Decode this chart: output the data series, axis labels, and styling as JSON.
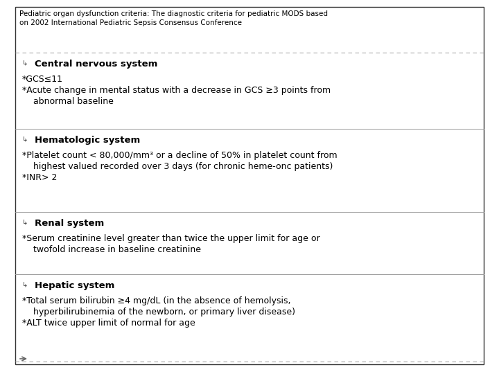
{
  "title": "Pediatric organ dysfunction criteria: The diagnostic criteria for pediatric MODS based\non 2002 International Pediatric Sepsis Consensus Conference",
  "title_fontsize": 7.5,
  "title_color": "#000000",
  "bg_color": "#ffffff",
  "border_color": "#333333",
  "dashed_color": "#aaaaaa",
  "solid_color": "#999999",
  "sections": [
    {
      "header": "Central nervous system",
      "lines": [
        "*GCS≤11",
        "*Acute change in mental status with a decrease in GCS ≥3 points from",
        "    abnormal baseline"
      ]
    },
    {
      "header": "Hematologic system",
      "lines": [
        "*Platelet count < 80,000/mm³ or a decline of 50% in platelet count from",
        "    highest valued recorded over 3 days (for chronic heme-onc patients)",
        "*INR> 2"
      ]
    },
    {
      "header": "Renal system",
      "lines": [
        "*Serum creatinine level greater than twice the upper limit for age or",
        "    twofold increase in baseline creatinine"
      ]
    },
    {
      "header": "Hepatic system",
      "lines": [
        "*Total serum bilirubin ≥4 mg/dL (in the absence of hemolysis,",
        "    hyperbilirubinemia of the newborn, or primary liver disease)",
        "*ALT twice upper limit of normal for age"
      ]
    }
  ],
  "header_fontsize": 9.5,
  "body_fontsize": 9.0,
  "bullet_symbol": "↳"
}
